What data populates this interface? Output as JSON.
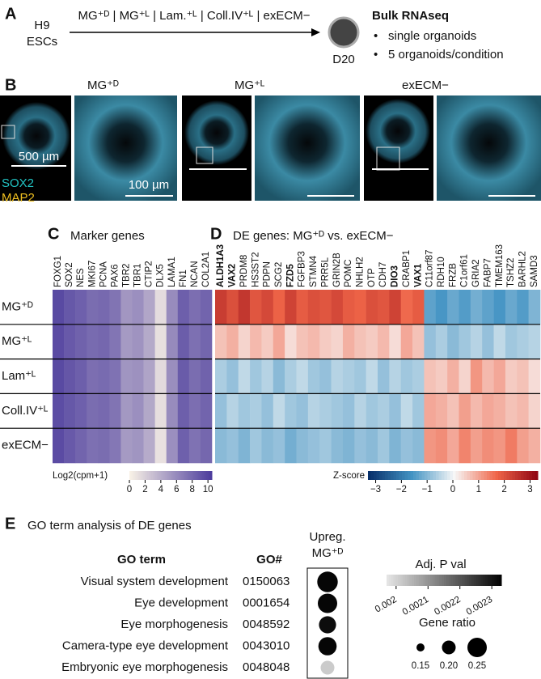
{
  "panel_a": {
    "letter": "A",
    "source": [
      "H9",
      "ESCs"
    ],
    "conditions": "MG⁺ᴰ | MG⁺ᴸ | Lam.⁺ᴸ | Coll.IV⁺ᴸ | exECM−",
    "timepoint": "D20",
    "method": "Bulk RNAseq",
    "bullets": [
      "single organoids",
      "5 organoids/condition"
    ]
  },
  "panel_b": {
    "letter": "B",
    "conditions": [
      "MG⁺ᴰ",
      "MG⁺ᴸ",
      "exECM−"
    ],
    "scale_bars": [
      "500 µm",
      "100 µm"
    ],
    "stains": [
      "SOX2",
      "MAP2"
    ]
  },
  "chart_data": [
    {
      "type": "heatmap",
      "letter": "C",
      "title": "Marker genes",
      "categories": [
        "FOXG1",
        "SOX2",
        "NES",
        "MKI67",
        "PCNA",
        "PAX6",
        "TBR2",
        "TBR1",
        "CTIP2",
        "DLX5",
        "LAMA1",
        "FN1",
        "NCAN",
        "COL2A1"
      ],
      "rows": [
        "MG⁺ᴰ",
        "MG⁺ᴸ",
        "Lam⁺ᴸ",
        "Coll.IV⁺ᴸ",
        "exECM−"
      ],
      "values": [
        [
          9.6,
          8.8,
          8.3,
          7.6,
          7.8,
          7.2,
          5.2,
          5.6,
          4.3,
          1.2,
          5.8,
          8.4,
          7.5,
          8.1
        ],
        [
          9.5,
          8.7,
          8.2,
          7.7,
          7.9,
          7.1,
          5.0,
          5.4,
          4.1,
          1.0,
          5.9,
          8.5,
          7.4,
          8.0
        ],
        [
          9.6,
          8.9,
          8.4,
          7.5,
          7.7,
          7.3,
          5.3,
          5.5,
          4.4,
          1.3,
          5.7,
          8.6,
          7.6,
          8.2
        ],
        [
          9.4,
          8.8,
          8.3,
          7.6,
          7.8,
          7.2,
          5.1,
          5.6,
          4.2,
          1.1,
          5.8,
          8.4,
          7.5,
          8.1
        ],
        [
          9.5,
          8.7,
          8.1,
          7.4,
          7.6,
          7.0,
          5.0,
          5.3,
          4.0,
          0.9,
          5.6,
          8.3,
          7.3,
          7.9
        ]
      ],
      "colorbar_label": "Log2(cpm+1)",
      "clim": [
        0,
        10.5
      ],
      "cticks": [
        0,
        2,
        4,
        6,
        8,
        10
      ],
      "colors": [
        "#f8f1e6",
        "#4a3a9c"
      ]
    },
    {
      "type": "heatmap",
      "letter": "D",
      "title": "DE genes: MG⁺ᴰ vs. exECM−",
      "categories": [
        "ALDH1A3",
        "VAX2",
        "PRDM8",
        "HS3ST2",
        "PDPN",
        "SCG2",
        "FZD5",
        "FGFBP3",
        "STMN4",
        "PRR5L",
        "GRIN2B",
        "POMC",
        "NHLH2",
        "OTP",
        "CDH7",
        "DIO3",
        "CRABP1",
        "VAX1",
        "C11orf87",
        "RDH10",
        "FRZB",
        "C1orf61",
        "GRIA2",
        "FABP7",
        "TMEM163",
        "TSHZ2",
        "BARHL2",
        "SAMD3"
      ],
      "bold": [
        "ALDH1A3",
        "VAX2",
        "FZD5",
        "DIO3",
        "VAX1"
      ],
      "values": [
        [
          2.3,
          2.0,
          2.4,
          1.9,
          2.1,
          1.7,
          2.2,
          1.8,
          2.0,
          1.9,
          2.1,
          1.8,
          1.7,
          2.0,
          1.9,
          2.2,
          1.6,
          1.8,
          -1.4,
          -1.6,
          -1.3,
          -1.5,
          -1.2,
          -1.4,
          -1.6,
          -1.3,
          -1.5,
          -1.1
        ],
        [
          0.6,
          0.8,
          0.4,
          0.7,
          0.5,
          0.9,
          0.3,
          0.6,
          0.7,
          0.5,
          0.4,
          0.8,
          0.6,
          0.5,
          0.7,
          0.3,
          0.9,
          0.6,
          -0.9,
          -0.7,
          -1.0,
          -0.8,
          -0.6,
          -0.9,
          -0.5,
          -0.8,
          -0.7,
          -0.6
        ],
        [
          -0.7,
          -0.9,
          -0.5,
          -0.8,
          -0.6,
          -1.0,
          -0.7,
          -0.5,
          -0.8,
          -0.9,
          -0.6,
          -0.7,
          -0.8,
          -0.5,
          -0.9,
          -0.6,
          -0.8,
          -0.7,
          0.6,
          0.5,
          0.8,
          0.4,
          1.1,
          0.7,
          0.9,
          0.5,
          0.6,
          0.3
        ],
        [
          -0.9,
          -0.6,
          -0.8,
          -0.7,
          -0.9,
          -0.5,
          -0.8,
          -0.9,
          -0.6,
          -0.7,
          -0.8,
          -0.9,
          -0.6,
          -0.8,
          -0.7,
          -0.9,
          -0.5,
          -0.8,
          0.9,
          0.8,
          0.6,
          1.0,
          0.7,
          0.9,
          0.8,
          0.6,
          0.7,
          0.4
        ],
        [
          -1.0,
          -0.9,
          -1.1,
          -0.8,
          -1.0,
          -0.9,
          -1.2,
          -1.0,
          -0.9,
          -0.8,
          -1.0,
          -1.1,
          -0.9,
          -1.0,
          -0.8,
          -1.1,
          -0.9,
          -1.0,
          1.1,
          1.2,
          0.9,
          1.3,
          1.0,
          1.2,
          1.1,
          1.4,
          1.0,
          0.8
        ]
      ],
      "colorbar_label": "Z-score",
      "clim": [
        -3.3,
        3.3
      ],
      "cticks": [
        {
          "value": -3,
          "label": "−3"
        },
        {
          "value": -2,
          "label": "−2"
        },
        {
          "value": -1,
          "label": "−1"
        },
        0,
        1,
        2,
        3
      ],
      "colors": [
        "#08306b",
        "#4393c3",
        "#f7f7f7",
        "#ef6548",
        "#8b0010"
      ]
    },
    {
      "type": "dot",
      "letter": "E",
      "title": "GO term analysis of DE genes",
      "headers": [
        "GO term",
        "GO#"
      ],
      "column": [
        "Upreg.",
        "MG⁺ᴰ"
      ],
      "categories": [
        "Visual system development",
        "Eye development",
        "Eye morphogenesis",
        "Camera-type eye development",
        "Embryonic eye morphogenesis"
      ],
      "go_ids": [
        "0150063",
        "0001654",
        "0048592",
        "0043010",
        "0048048"
      ],
      "values": [
        0.26,
        0.25,
        0.23,
        0.24,
        0.2
      ],
      "padj": [
        0.00232,
        0.00232,
        0.00231,
        0.00232,
        0.00201
      ],
      "color_title": "Adj. P val",
      "clim": [
        0.00197,
        0.00233
      ],
      "cticks": [
        0.002,
        0.0021,
        0.0022,
        0.0023
      ],
      "colors": [
        "#e4e4e4",
        "#000000"
      ],
      "size_title": "Gene ratio",
      "size_ticks": [
        0.15,
        {
          "value": 0.2,
          "label": "0.20"
        },
        0.25
      ]
    }
  ]
}
